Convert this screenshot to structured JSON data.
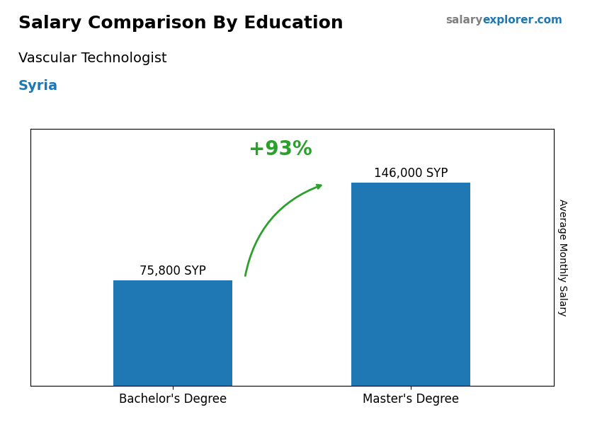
{
  "chart_data": {
    "type": "bar",
    "title": "Salary Comparison By Education",
    "subtitle": "Vascular Technologist",
    "ylabel": "Average Monthly Salary",
    "annotations": [
      "Syria",
      "+93%",
      "salary",
      "explorer",
      ".com"
    ],
    "categories": [
      "Bachelor's Degree",
      "Master's Degree"
    ],
    "values": [
      75800,
      146000
    ],
    "value_labels": [
      "75,800 SYP",
      "146,000 SYP"
    ],
    "data_labels": true,
    "ylim": [
      0,
      185000
    ],
    "tick_labels": "x"
  }
}
